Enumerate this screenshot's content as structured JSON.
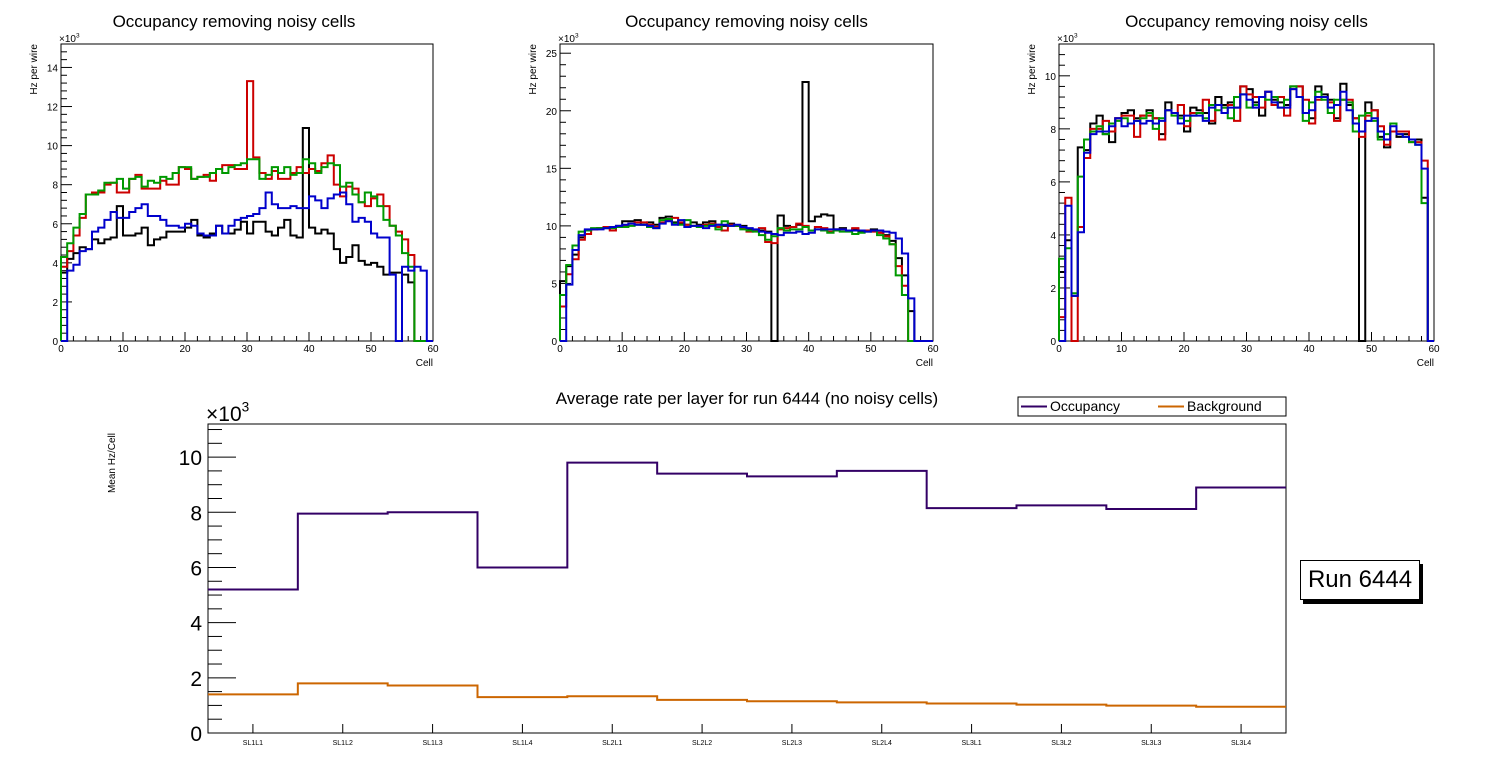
{
  "chart_data": [
    {
      "type": "line",
      "style": "step-histogram",
      "title": "Occupancy removing noisy cells",
      "xlabel": "Cell",
      "ylabel": "Hz per wire",
      "y_multiplier_label": "×10^3",
      "xlim": [
        0,
        60
      ],
      "ylim": [
        0,
        15.2
      ],
      "xticks": [
        0,
        10,
        20,
        30,
        40,
        50,
        60
      ],
      "yticks": [
        0,
        2,
        4,
        6,
        8,
        10,
        12,
        14
      ],
      "bin_edges_start": 0,
      "bin_width": 1,
      "series": [
        {
          "name": "black",
          "color": "#000000",
          "values": [
            3.5,
            4.2,
            4.5,
            4.8,
            4.7,
            5.2,
            5.0,
            5.2,
            5.3,
            6.9,
            5.4,
            5.4,
            5.5,
            5.8,
            4.9,
            5.2,
            5.3,
            5.6,
            5.6,
            5.6,
            5.8,
            6.2,
            5.4,
            5.3,
            5.5,
            5.9,
            5.5,
            5.5,
            5.7,
            6.1,
            5.5,
            6.1,
            6.1,
            5.6,
            5.4,
            5.8,
            6.2,
            5.4,
            5.3,
            10.9,
            5.8,
            5.5,
            5.7,
            5.5,
            4.7,
            4.0,
            4.3,
            4.9,
            4.1,
            3.9,
            4.0,
            3.8,
            3.4,
            3.5,
            3.5,
            3.4,
            3.0,
            0,
            0,
            0
          ]
        },
        {
          "name": "red",
          "color": "#cc0000",
          "values": [
            3.8,
            4.6,
            5.4,
            6.3,
            7.5,
            7.6,
            7.6,
            8.0,
            8.1,
            7.6,
            7.6,
            8.3,
            8.5,
            7.8,
            7.8,
            7.8,
            8.2,
            8.0,
            8.0,
            8.9,
            8.8,
            8.3,
            8.4,
            8.5,
            8.2,
            8.8,
            9.0,
            9.0,
            8.8,
            8.8,
            13.3,
            9.4,
            8.6,
            8.3,
            8.7,
            8.3,
            8.3,
            8.6,
            8.9,
            8.6,
            8.8,
            8.7,
            9.1,
            9.5,
            8.0,
            7.4,
            7.9,
            7.8,
            7.1,
            6.9,
            7.3,
            7.5,
            6.9,
            5.9,
            5.6,
            5.2,
            4.4,
            0,
            0,
            0
          ]
        },
        {
          "name": "green",
          "color": "#009900",
          "values": [
            4.3,
            5.0,
            5.8,
            6.5,
            7.5,
            7.5,
            7.7,
            8.1,
            8.1,
            8.3,
            7.8,
            8.3,
            8.4,
            7.9,
            8.2,
            8.1,
            8.4,
            8.3,
            8.6,
            8.9,
            8.9,
            8.3,
            8.4,
            8.4,
            8.6,
            8.8,
            8.6,
            8.9,
            9.0,
            9.1,
            9.3,
            9.3,
            8.3,
            8.5,
            8.9,
            8.6,
            8.9,
            8.5,
            8.6,
            9.3,
            9.1,
            8.6,
            8.9,
            9.1,
            9.0,
            7.9,
            8.1,
            7.5,
            7.1,
            7.6,
            7.4,
            6.9,
            6.2,
            5.9,
            5.4,
            4.5,
            3.8,
            0,
            0,
            0
          ]
        },
        {
          "name": "blue",
          "color": "#0000cc",
          "values": [
            0,
            3.6,
            3.9,
            4.6,
            4.7,
            5.6,
            5.8,
            6.2,
            6.6,
            6.3,
            6.3,
            6.6,
            6.8,
            7.0,
            6.4,
            6.4,
            6.2,
            5.9,
            5.9,
            5.8,
            6.0,
            5.9,
            5.5,
            5.4,
            5.4,
            5.9,
            5.5,
            5.9,
            6.2,
            6.3,
            6.4,
            6.5,
            6.8,
            7.6,
            7.0,
            6.8,
            6.8,
            6.9,
            6.8,
            6.8,
            7.4,
            7.2,
            6.8,
            7.3,
            7.5,
            7.6,
            7.0,
            6.1,
            6.3,
            6.1,
            5.5,
            5.3,
            5.3,
            3.4,
            0,
            3.8,
            3.6,
            3.8,
            3.6,
            0
          ]
        }
      ]
    },
    {
      "type": "line",
      "style": "step-histogram",
      "title": "Occupancy removing noisy cells",
      "xlabel": "Cell",
      "ylabel": "Hz per wire",
      "y_multiplier_label": "×10^3",
      "xlim": [
        0,
        60
      ],
      "ylim": [
        0,
        25.8
      ],
      "xticks": [
        0,
        10,
        20,
        30,
        40,
        50,
        60
      ],
      "yticks": [
        0,
        5,
        10,
        15,
        20,
        25
      ],
      "bin_edges_start": 0,
      "bin_width": 1,
      "series": [
        {
          "name": "black",
          "color": "#000000",
          "values": [
            5.2,
            6.5,
            7.5,
            9.0,
            9.6,
            9.7,
            9.8,
            9.8,
            9.9,
            10.0,
            10.4,
            10.4,
            10.5,
            10.1,
            10.3,
            10.1,
            10.7,
            10.8,
            10.3,
            10.2,
            10.1,
            10.3,
            10.1,
            10.3,
            10.4,
            10.1,
            10.0,
            10.2,
            10.0,
            10.0,
            9.7,
            9.6,
            9.6,
            9.5,
            0,
            10.9,
            10.0,
            9.9,
            10.1,
            22.5,
            10.4,
            10.8,
            11.0,
            10.9,
            9.7,
            9.8,
            9.6,
            9.7,
            9.5,
            9.6,
            9.7,
            9.4,
            9.2,
            8.7,
            7.2,
            5.7,
            2.6,
            0,
            0,
            0
          ]
        },
        {
          "name": "red",
          "color": "#cc0000",
          "values": [
            3.0,
            5.8,
            7.1,
            8.8,
            9.3,
            9.7,
            9.8,
            9.9,
            9.6,
            9.9,
            10.0,
            10.2,
            10.3,
            10.3,
            10.1,
            9.9,
            10.3,
            10.5,
            10.7,
            10.3,
            10.1,
            10.0,
            10.0,
            10.1,
            10.2,
            9.9,
            9.6,
            10.1,
            10.0,
            9.8,
            9.5,
            9.6,
            9.8,
            8.6,
            8.5,
            9.7,
            9.8,
            9.9,
            10.2,
            10.0,
            9.6,
            9.9,
            9.8,
            9.5,
            9.6,
            9.7,
            9.6,
            9.8,
            9.6,
            9.6,
            9.5,
            9.4,
            9.1,
            8.4,
            6.5,
            4.8,
            0,
            0,
            0,
            0
          ]
        },
        {
          "name": "green",
          "color": "#009900",
          "values": [
            4.0,
            6.6,
            8.3,
            9.5,
            9.6,
            9.8,
            9.8,
            9.8,
            9.8,
            9.9,
            9.9,
            10.0,
            10.1,
            10.1,
            9.9,
            9.8,
            10.5,
            10.6,
            10.2,
            10.1,
            10.5,
            10.0,
            9.9,
            10.0,
            10.1,
            9.7,
            10.4,
            10.0,
            10.0,
            9.7,
            9.6,
            9.5,
            9.2,
            8.8,
            9.1,
            9.8,
            9.6,
            9.7,
            9.7,
            9.9,
            9.6,
            9.7,
            9.6,
            9.4,
            9.6,
            9.5,
            9.5,
            9.3,
            9.4,
            9.5,
            9.6,
            9.2,
            8.9,
            8.4,
            5.7,
            4.0,
            0,
            0,
            0,
            0
          ]
        },
        {
          "name": "blue",
          "color": "#0000cc",
          "values": [
            0,
            4.9,
            7.9,
            9.2,
            9.7,
            9.7,
            9.7,
            9.8,
            9.9,
            10.0,
            10.1,
            10.2,
            10.1,
            10.1,
            10.0,
            9.8,
            10.2,
            10.4,
            10.1,
            10.5,
            9.9,
            10.0,
            10.0,
            9.8,
            10.0,
            10.1,
            10.1,
            10.0,
            10.1,
            9.9,
            9.8,
            9.7,
            9.5,
            9.4,
            9.3,
            9.2,
            9.4,
            9.4,
            9.5,
            9.3,
            9.4,
            9.7,
            9.7,
            9.7,
            9.7,
            9.7,
            9.6,
            9.6,
            9.6,
            9.5,
            9.6,
            9.6,
            9.5,
            9.4,
            8.9,
            7.6,
            3.7,
            0,
            0,
            0
          ]
        }
      ]
    },
    {
      "type": "line",
      "style": "step-histogram",
      "title": "Occupancy removing noisy cells",
      "xlabel": "Cell",
      "ylabel": "Hz per wire",
      "y_multiplier_label": "×10^3",
      "xlim": [
        0,
        60
      ],
      "ylim": [
        0,
        11.2
      ],
      "xticks": [
        0,
        10,
        20,
        30,
        40,
        50,
        60
      ],
      "yticks": [
        0,
        2,
        4,
        6,
        8,
        10
      ],
      "bin_edges_start": 0,
      "bin_width": 1,
      "series": [
        {
          "name": "black",
          "color": "#000000",
          "values": [
            2.6,
            3.8,
            1.7,
            7.3,
            7.2,
            8.2,
            8.5,
            7.8,
            7.5,
            8.4,
            8.6,
            8.7,
            8.4,
            8.5,
            8.7,
            8.4,
            7.8,
            9.0,
            8.6,
            8.5,
            7.9,
            8.8,
            8.7,
            8.6,
            8.2,
            9.2,
            8.9,
            9.0,
            8.8,
            9.6,
            9.5,
            9.0,
            8.5,
            9.4,
            9.1,
            9.0,
            8.9,
            9.6,
            9.6,
            8.6,
            8.4,
            9.6,
            9.3,
            9.1,
            8.4,
            9.7,
            8.9,
            8.4,
            0,
            9.0,
            8.7,
            7.7,
            7.3,
            7.9,
            7.7,
            7.8,
            7.6,
            7.6,
            5.4,
            0
          ]
        },
        {
          "name": "red",
          "color": "#cc0000",
          "values": [
            0.9,
            5.4,
            0,
            4.3,
            6.9,
            8.0,
            8.0,
            8.3,
            7.9,
            8.4,
            8.5,
            8.5,
            7.7,
            8.5,
            8.5,
            8.4,
            7.6,
            8.7,
            8.6,
            8.9,
            8.1,
            8.6,
            8.6,
            9.1,
            8.3,
            8.9,
            8.8,
            8.9,
            8.3,
            9.6,
            9.3,
            9.2,
            8.8,
            9.4,
            8.9,
            9.2,
            8.5,
            9.5,
            9.6,
            9.1,
            8.2,
            9.1,
            9.2,
            9.0,
            8.3,
            9.1,
            9.1,
            8.4,
            7.7,
            8.5,
            8.7,
            8.1,
            7.4,
            7.9,
            7.9,
            7.9,
            7.5,
            7.5,
            6.8,
            0
          ]
        },
        {
          "name": "green",
          "color": "#009900",
          "values": [
            3.1,
            3.5,
            1.8,
            6.2,
            7.6,
            7.9,
            8.1,
            7.8,
            8.2,
            8.3,
            8.4,
            8.2,
            8.3,
            8.4,
            8.6,
            8.0,
            8.4,
            8.7,
            8.5,
            8.4,
            8.3,
            8.5,
            8.6,
            8.4,
            8.9,
            8.7,
            8.8,
            8.4,
            9.2,
            9.3,
            8.8,
            8.9,
            9.2,
            9.1,
            9.2,
            8.8,
            9.1,
            9.6,
            9.2,
            8.3,
            9.0,
            9.4,
            9.1,
            8.6,
            9.1,
            9.1,
            9.0,
            7.9,
            8.5,
            8.6,
            8.3,
            7.6,
            7.8,
            8.2,
            7.8,
            7.7,
            7.5,
            7.4,
            5.2,
            0
          ]
        },
        {
          "name": "blue",
          "color": "#0000cc",
          "values": [
            0,
            5.1,
            1.7,
            4.1,
            7.1,
            7.8,
            7.9,
            7.9,
            8.1,
            8.4,
            8.1,
            8.2,
            8.3,
            8.2,
            8.3,
            8.2,
            8.3,
            8.7,
            8.6,
            8.2,
            8.5,
            8.5,
            8.5,
            8.3,
            8.8,
            8.9,
            8.6,
            8.8,
            8.8,
            9.3,
            9.1,
            8.8,
            9.2,
            9.4,
            9.0,
            8.8,
            8.8,
            9.5,
            9.2,
            8.6,
            8.7,
            9.2,
            9.2,
            8.8,
            8.9,
            9.4,
            8.7,
            8.2,
            7.9,
            8.3,
            8.4,
            7.9,
            7.6,
            8.1,
            7.8,
            7.7,
            7.6,
            7.4,
            6.5,
            0
          ]
        }
      ]
    },
    {
      "type": "line",
      "style": "step-histogram",
      "title": "Average rate per layer for run 6444 (no noisy cells)",
      "xlabel": "",
      "ylabel": "Mean Hz/Cell",
      "y_multiplier_label": "×10^3",
      "ylim": [
        0,
        11.2
      ],
      "yticks": [
        0,
        2,
        4,
        6,
        8,
        10
      ],
      "categories": [
        "SL1L1",
        "SL1L2",
        "SL1L3",
        "SL1L4",
        "SL2L1",
        "SL2L2",
        "SL2L3",
        "SL2L4",
        "SL3L1",
        "SL3L2",
        "SL3L3",
        "SL3L4"
      ],
      "legend_position": "top-right",
      "series": [
        {
          "name": "Occupancy",
          "color": "#330066",
          "values": [
            5.2,
            7.95,
            8.0,
            6.0,
            9.8,
            9.4,
            9.3,
            9.5,
            8.15,
            8.25,
            8.12,
            8.9
          ]
        },
        {
          "name": "Background",
          "color": "#cc6600",
          "values": [
            1.4,
            1.8,
            1.72,
            1.3,
            1.33,
            1.2,
            1.15,
            1.11,
            1.07,
            1.03,
            0.99,
            0.95
          ]
        }
      ],
      "annotation": "Run 6444"
    }
  ]
}
